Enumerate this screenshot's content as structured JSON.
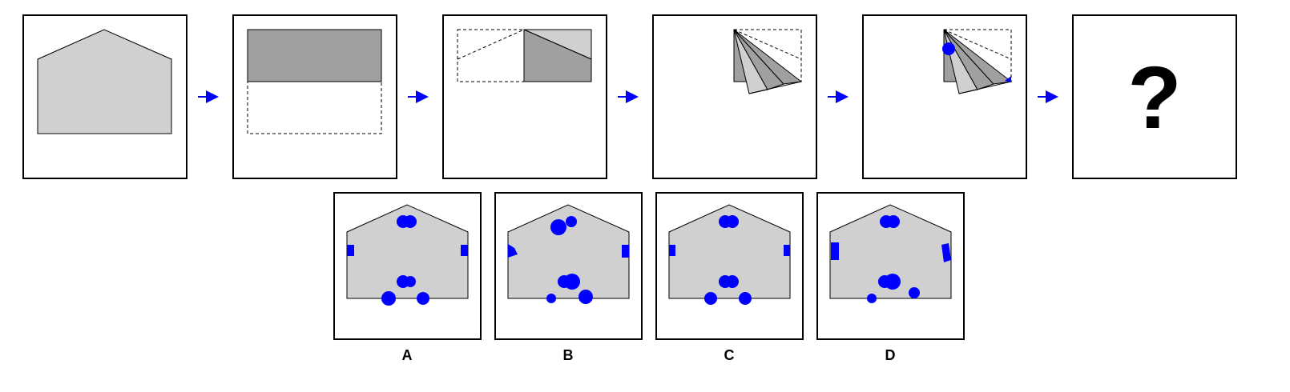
{
  "puzzle": {
    "question_mark": "?",
    "options": [
      {
        "label": "A"
      },
      {
        "label": "B"
      },
      {
        "label": "C"
      },
      {
        "label": "D"
      }
    ]
  },
  "colors": {
    "paper_light": "#d0d0d0",
    "paper_dark": "#a0a0a0",
    "punch": "#0000ff",
    "arrow": "#0000ff",
    "outline": "#000000",
    "background": "#ffffff"
  }
}
